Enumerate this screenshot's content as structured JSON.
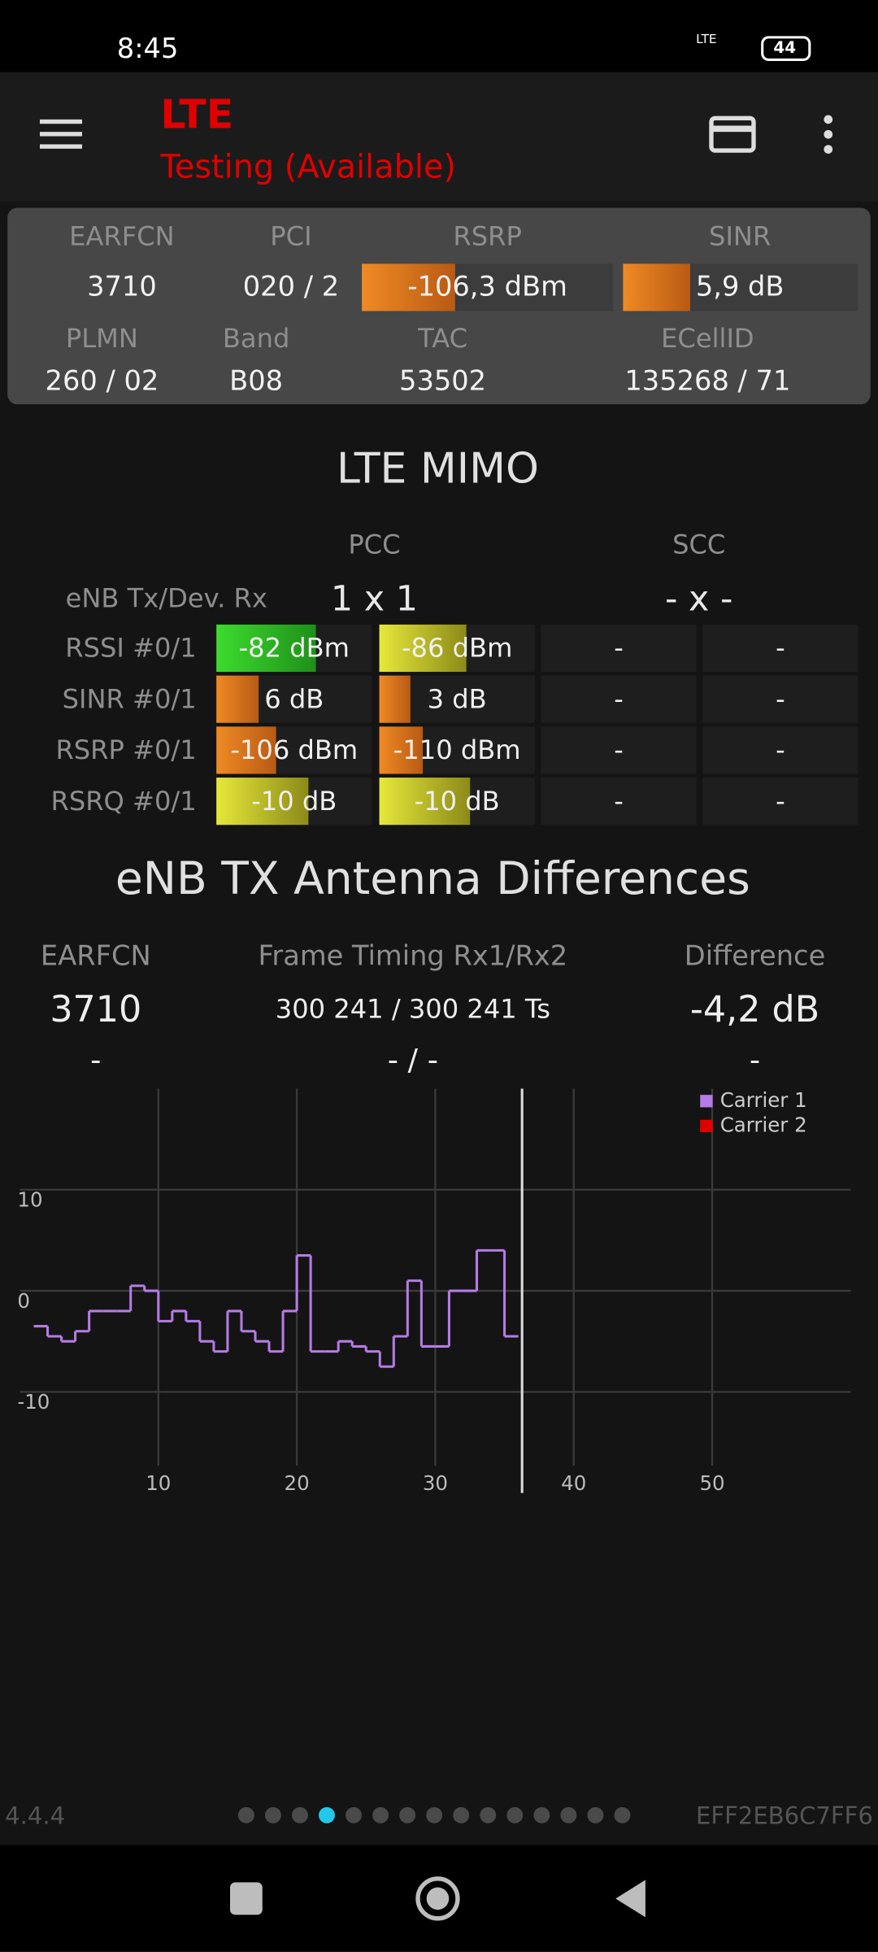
{
  "status_bar": {
    "time": "8:45",
    "network": "LTE",
    "battery": "44"
  },
  "app_bar": {
    "title": "LTE",
    "subtitle": "Testing (Available)"
  },
  "summary": {
    "labels": [
      "EARFCN",
      "PCI",
      "RSRP",
      "SINR",
      "PLMN",
      "Band",
      "TAC",
      "ECellID"
    ],
    "values": [
      "3710",
      "020 / 2",
      "-106,3 dBm",
      "5,9 dB",
      "260 / 02",
      "B08",
      "53502",
      "135268 / 71"
    ]
  },
  "mimo": {
    "title": "LTE MIMO",
    "columns": [
      "PCC",
      "SCC"
    ],
    "config_label": "eNB Tx/Dev. Rx",
    "config": [
      "1 x 1",
      "- x -"
    ],
    "rows": [
      {
        "label": "RSSI #0/1",
        "cells": [
          "-82 dBm",
          "-86 dBm",
          "-",
          "-"
        ]
      },
      {
        "label": "SINR #0/1",
        "cells": [
          "6 dB",
          "3 dB",
          "-",
          "-"
        ]
      },
      {
        "label": "RSRP #0/1",
        "cells": [
          "-106 dBm",
          "-110 dBm",
          "-",
          "-"
        ]
      },
      {
        "label": "RSRQ #0/1",
        "cells": [
          "-10 dB",
          "-10 dB",
          "-",
          "-"
        ]
      }
    ]
  },
  "antenna": {
    "title": "eNB TX Antenna Differences",
    "headers": [
      "EARFCN",
      "Frame Timing Rx1/Rx2",
      "Difference"
    ],
    "rows": [
      [
        "3710",
        "300 241 / 300 241 Ts",
        "-4,2 dB"
      ],
      [
        "-",
        "- / -",
        "-"
      ]
    ]
  },
  "chart_data": {
    "type": "line",
    "step": "post",
    "x": [
      1,
      2,
      3,
      4,
      5,
      6,
      7,
      8,
      9,
      10,
      11,
      12,
      13,
      14,
      15,
      16,
      17,
      18,
      19,
      20,
      21,
      22,
      23,
      24,
      25,
      26,
      27,
      28,
      29,
      30,
      31,
      32,
      33,
      34,
      35
    ],
    "series": [
      {
        "name": "Carrier 1",
        "color": "#b57be6",
        "values": [
          -3.5,
          -4.5,
          -5,
          -4,
          -2,
          -2,
          -2,
          0.5,
          0,
          -3,
          -2,
          -3,
          -5,
          -6,
          -2,
          -4,
          -5,
          -6,
          -2,
          3.5,
          -6,
          -6,
          -5,
          -5.5,
          -6,
          -7.5,
          -4.5,
          1,
          -5.5,
          -5.5,
          0,
          0,
          4,
          4,
          -4.5
        ]
      },
      {
        "name": "Carrier 2",
        "color": "#e00000",
        "values": [
          null,
          null,
          null,
          null,
          null,
          null,
          null,
          null,
          null,
          null,
          null,
          null,
          null,
          null,
          null,
          null,
          null,
          null,
          null,
          null,
          null,
          null,
          null,
          null,
          null,
          null,
          null,
          null,
          null,
          null,
          null,
          null,
          null,
          null,
          null
        ]
      }
    ],
    "xlim": [
      0,
      60
    ],
    "ylim": [
      -20,
      20
    ],
    "xticks": [
      10,
      20,
      30,
      40,
      50
    ],
    "yticks": [
      -10,
      0,
      10
    ],
    "grid": true,
    "legend": "upper right"
  },
  "footer": {
    "version": "4.4.4",
    "id": "EFF2EB6C7FF6"
  }
}
